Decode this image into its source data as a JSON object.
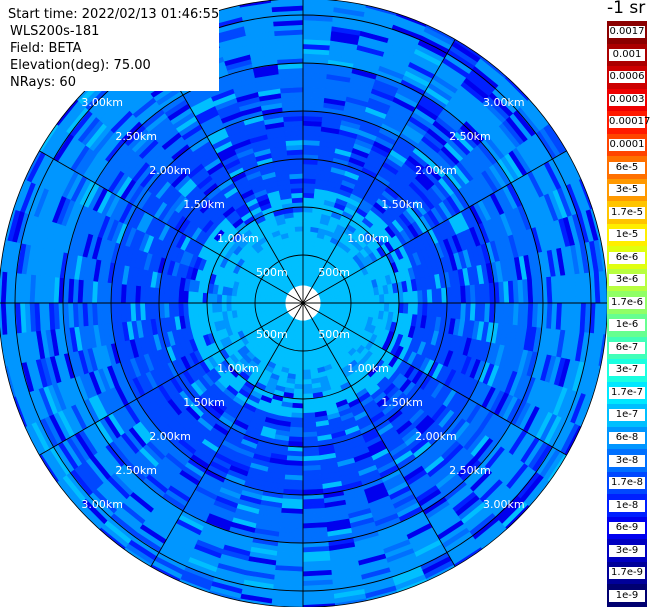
{
  "info": {
    "start_time": "Start time: 2022/02/13 01:46:55",
    "instrument": "WLS200s-181",
    "field": "Field: BETA",
    "elevation": "Elevation(deg): 75.00",
    "nrays": "NRays: 60"
  },
  "colorbar": {
    "unit": "-1 sr",
    "entries": [
      {
        "label": "0.0017",
        "color": "#8b0000"
      },
      {
        "label": "0.001",
        "color": "#aa0000"
      },
      {
        "label": "0.0006",
        "color": "#cc0000"
      },
      {
        "label": "0.0003",
        "color": "#ee0000"
      },
      {
        "label": "0.00017",
        "color": "#ff1a00"
      },
      {
        "label": "0.0001",
        "color": "#ff4400"
      },
      {
        "label": "6e-5",
        "color": "#ff7000"
      },
      {
        "label": "3e-5",
        "color": "#ff9900"
      },
      {
        "label": "1.7e-5",
        "color": "#ffc400"
      },
      {
        "label": "1e-5",
        "color": "#ffee00"
      },
      {
        "label": "6e-6",
        "color": "#e0ff10"
      },
      {
        "label": "3e-6",
        "color": "#b8ff40"
      },
      {
        "label": "1.7e-6",
        "color": "#90ff66"
      },
      {
        "label": "1e-6",
        "color": "#66ff90"
      },
      {
        "label": "6e-7",
        "color": "#40ffb8"
      },
      {
        "label": "3e-7",
        "color": "#1affe0"
      },
      {
        "label": "1.7e-7",
        "color": "#00e8ff"
      },
      {
        "label": "1e-7",
        "color": "#00bfff"
      },
      {
        "label": "6e-8",
        "color": "#0096ff"
      },
      {
        "label": "3e-8",
        "color": "#0070ff"
      },
      {
        "label": "1.7e-8",
        "color": "#0048ff"
      },
      {
        "label": "1e-8",
        "color": "#0020ff"
      },
      {
        "label": "6e-9",
        "color": "#0000ee"
      },
      {
        "label": "3e-9",
        "color": "#0000c0"
      },
      {
        "label": "1.7e-9",
        "color": "#000099"
      },
      {
        "label": "1e-9",
        "color": "#000070"
      }
    ]
  },
  "chart_data": {
    "type": "heatmap",
    "projection": "polar (PPI)",
    "field": "BETA",
    "n_rays": 60,
    "elevation_deg": 75.0,
    "colorscale": "log jet, 1e-9 to 0.0017",
    "range_rings_km": [
      0.5,
      1.0,
      1.5,
      2.0,
      2.5,
      3.0
    ],
    "range_ring_labels": [
      "500m",
      "1.00km",
      "1.50km",
      "2.00km",
      "2.50km",
      "3.00km"
    ],
    "radial_lines_deg": [
      0,
      30,
      60,
      90,
      120,
      150,
      180,
      210,
      240,
      270,
      300,
      330
    ],
    "bands": [
      {
        "range_km": [
          0.1,
          1.2
        ],
        "value": 1e-07
      },
      {
        "range_km": [
          1.2,
          2.0
        ],
        "value": 1.7e-08
      },
      {
        "range_km": [
          2.0,
          2.5
        ],
        "value": 3e-08
      },
      {
        "range_km": [
          2.5,
          3.4
        ],
        "value": 6e-08
      }
    ]
  }
}
